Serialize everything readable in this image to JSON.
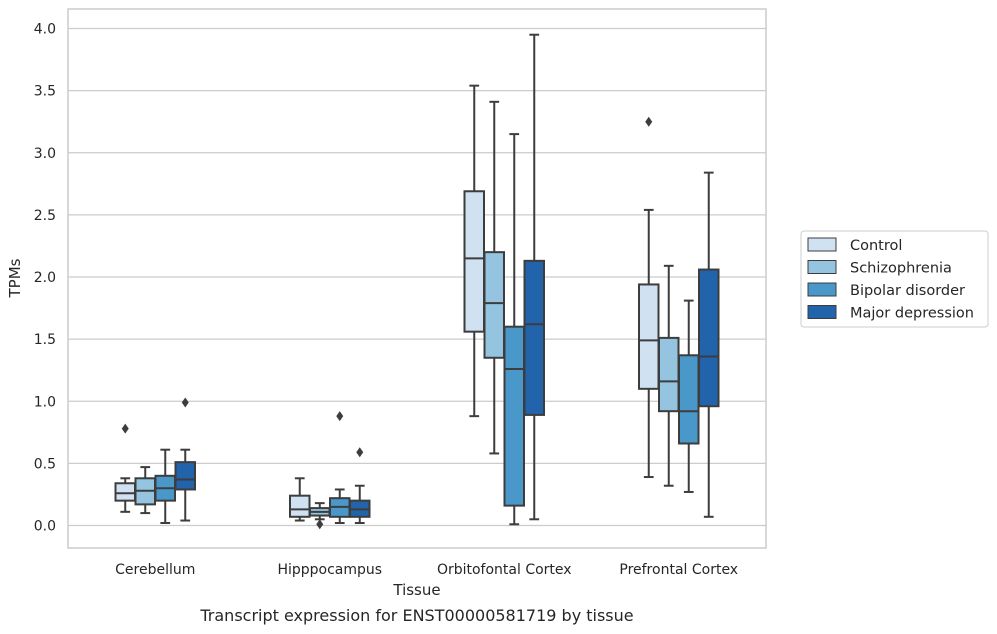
{
  "chart_data": {
    "type": "box",
    "title": "",
    "caption": "Transcript expression for ENST00000581719 by tissue",
    "xlabel": "Tissue",
    "ylabel": "TPMs",
    "ylim": [
      -0.18,
      4.15
    ],
    "yticks": [
      "0.0",
      "0.5",
      "1.0",
      "1.5",
      "2.0",
      "2.5",
      "3.0",
      "3.5",
      "4.0"
    ],
    "grid": "horizontal",
    "legend_position": "right",
    "categories": [
      "Cerebellum",
      "Hipppocampus",
      "Orbitofontal Cortex",
      "Prefrontal Cortex"
    ],
    "series": [
      {
        "name": "Control",
        "color": "#d0e1f2",
        "boxes": [
          {
            "q1": 0.2,
            "median": 0.26,
            "q3": 0.34,
            "whisker_low": 0.11,
            "whisker_high": 0.38,
            "outliers": [
              0.78
            ]
          },
          {
            "q1": 0.07,
            "median": 0.13,
            "q3": 0.24,
            "whisker_low": 0.04,
            "whisker_high": 0.38,
            "outliers": []
          },
          {
            "q1": 1.56,
            "median": 2.15,
            "q3": 2.69,
            "whisker_low": 0.88,
            "whisker_high": 3.54,
            "outliers": []
          },
          {
            "q1": 1.1,
            "median": 1.49,
            "q3": 1.94,
            "whisker_low": 0.39,
            "whisker_high": 2.54,
            "outliers": [
              3.25
            ]
          }
        ]
      },
      {
        "name": "Schizophrenia",
        "color": "#94c4df",
        "boxes": [
          {
            "q1": 0.17,
            "median": 0.28,
            "q3": 0.38,
            "whisker_low": 0.1,
            "whisker_high": 0.47,
            "outliers": []
          },
          {
            "q1": 0.08,
            "median": 0.11,
            "q3": 0.14,
            "whisker_low": 0.05,
            "whisker_high": 0.18,
            "outliers": [
              0.01
            ]
          },
          {
            "q1": 1.35,
            "median": 1.79,
            "q3": 2.2,
            "whisker_low": 0.58,
            "whisker_high": 3.41,
            "outliers": []
          },
          {
            "q1": 0.92,
            "median": 1.16,
            "q3": 1.51,
            "whisker_low": 0.32,
            "whisker_high": 2.09,
            "outliers": []
          }
        ]
      },
      {
        "name": "Bipolar disorder",
        "color": "#4a98c9",
        "boxes": [
          {
            "q1": 0.2,
            "median": 0.3,
            "q3": 0.4,
            "whisker_low": 0.02,
            "whisker_high": 0.61,
            "outliers": []
          },
          {
            "q1": 0.07,
            "median": 0.15,
            "q3": 0.22,
            "whisker_low": 0.02,
            "whisker_high": 0.29,
            "outliers": [
              0.88
            ]
          },
          {
            "q1": 0.16,
            "median": 1.26,
            "q3": 1.6,
            "whisker_low": 0.01,
            "whisker_high": 3.15,
            "outliers": []
          },
          {
            "q1": 0.66,
            "median": 0.92,
            "q3": 1.37,
            "whisker_low": 0.27,
            "whisker_high": 1.81,
            "outliers": []
          }
        ]
      },
      {
        "name": "Major depression",
        "color": "#2164ab",
        "boxes": [
          {
            "q1": 0.29,
            "median": 0.37,
            "q3": 0.51,
            "whisker_low": 0.04,
            "whisker_high": 0.61,
            "outliers": [
              0.99
            ]
          },
          {
            "q1": 0.07,
            "median": 0.13,
            "q3": 0.2,
            "whisker_low": 0.02,
            "whisker_high": 0.32,
            "outliers": [
              0.59
            ]
          },
          {
            "q1": 0.89,
            "median": 1.62,
            "q3": 2.13,
            "whisker_low": 0.05,
            "whisker_high": 3.95,
            "outliers": []
          },
          {
            "q1": 0.96,
            "median": 1.36,
            "q3": 2.06,
            "whisker_low": 0.07,
            "whisker_high": 2.84,
            "outliers": []
          }
        ]
      }
    ]
  }
}
